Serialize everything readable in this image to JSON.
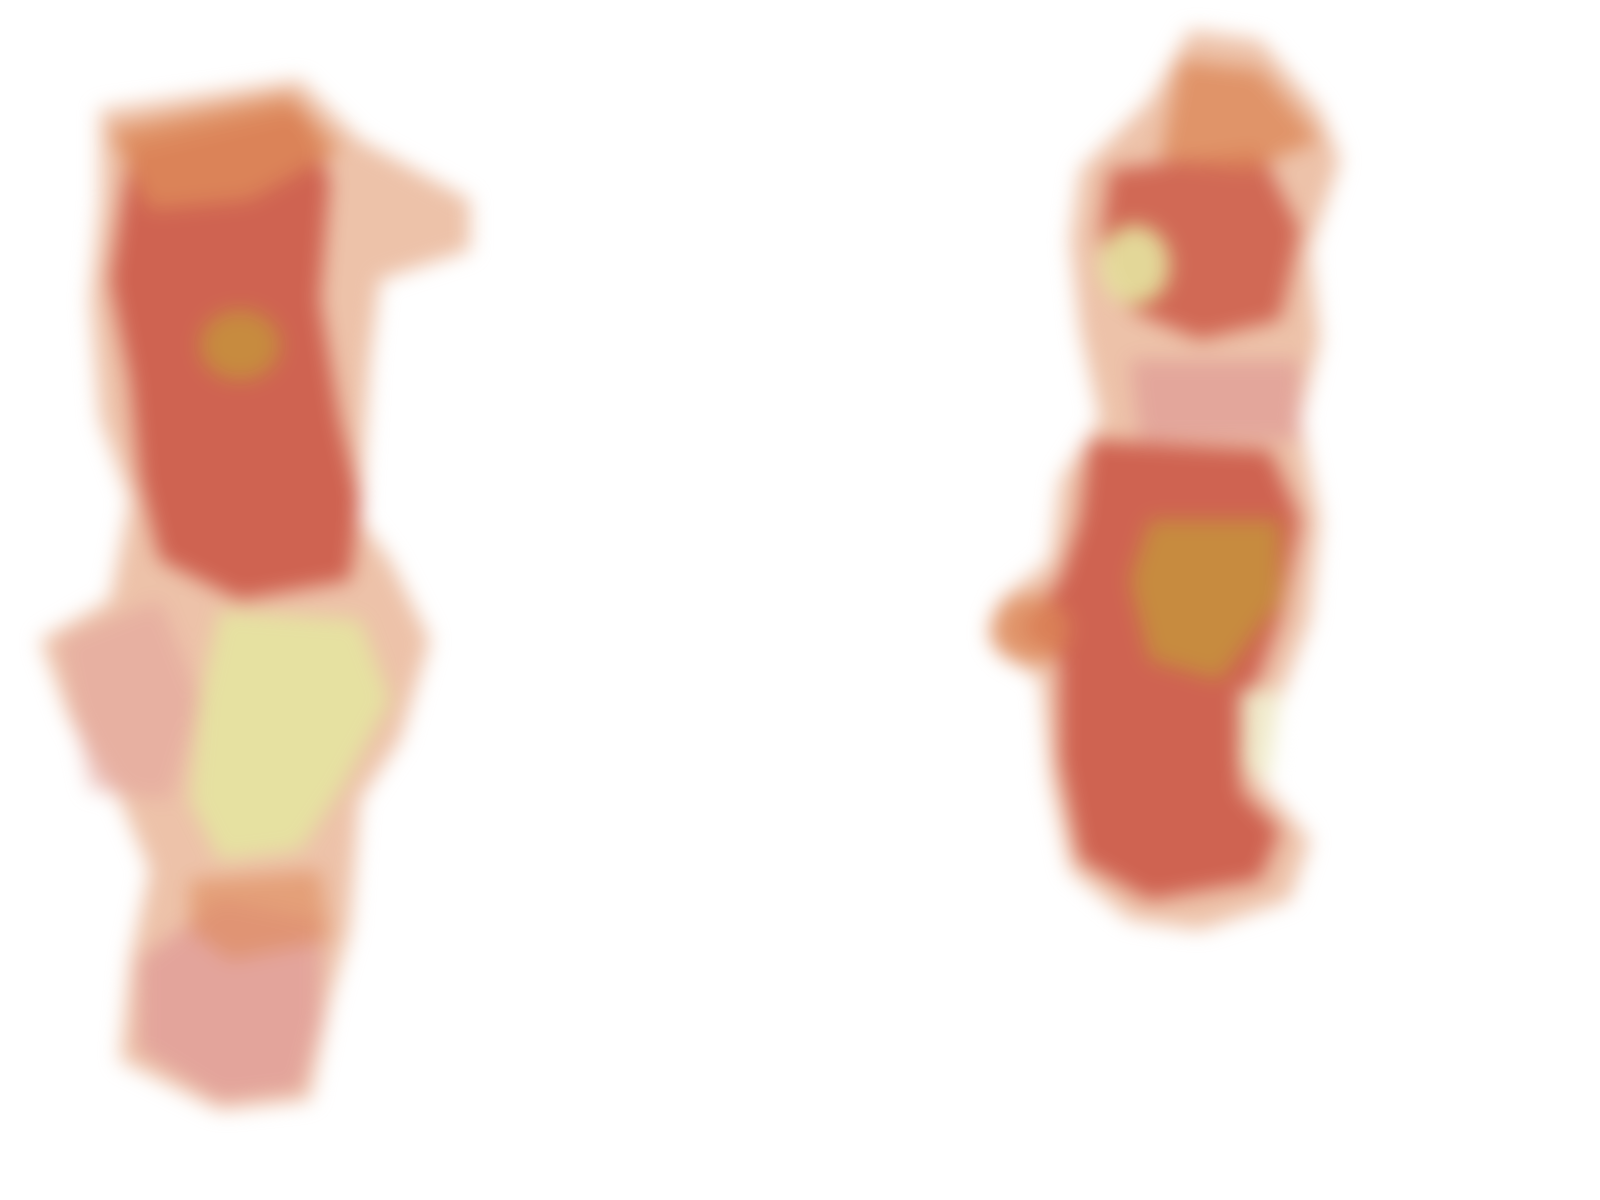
{
  "scene": {
    "background": "#ffffff",
    "palette": {
      "peach": "#eab79a",
      "orange": "#dd8a5a",
      "red": "#cc5a48",
      "pink": "#e2a29a",
      "olive": "#c4983a",
      "lime": "#e6e3a0",
      "pale_yellow": "#f1efcf"
    },
    "blobs": [
      {
        "name": "left-heat-blob",
        "icon": "blurred-pixel-cluster"
      },
      {
        "name": "right-heat-blob",
        "icon": "blurred-pixel-cluster"
      }
    ]
  }
}
